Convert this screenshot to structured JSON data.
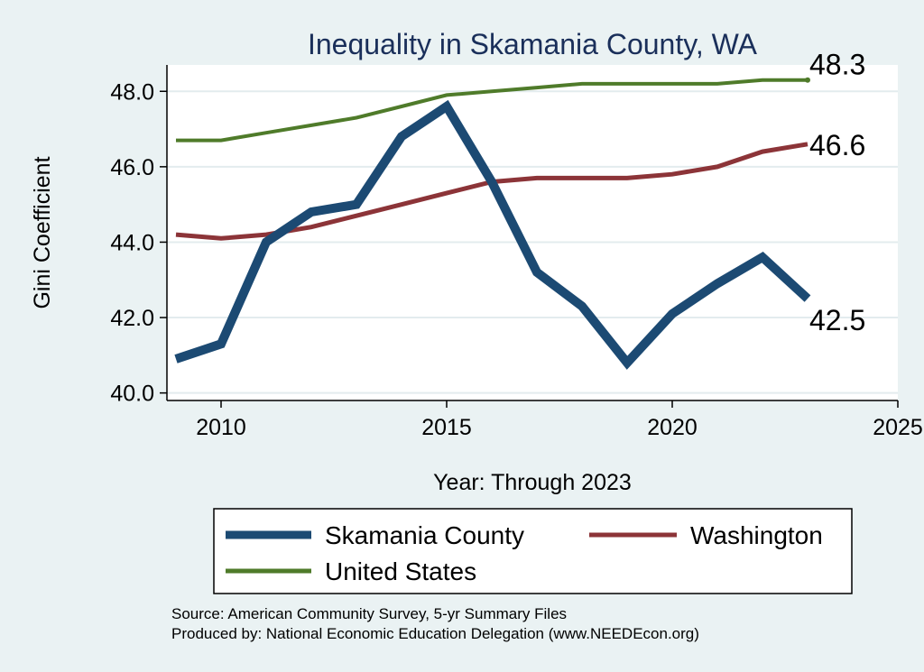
{
  "chart_data": {
    "type": "line",
    "title": "Inequality in Skamania County, WA",
    "xlabel": "Year: Through 2023",
    "ylabel": "Gini Coefficient",
    "xlim": [
      2008.8,
      2025
    ],
    "ylim": [
      39.8,
      48.7
    ],
    "x_ticks": [
      2010,
      2015,
      2020,
      2025
    ],
    "y_ticks": [
      40.0,
      42.0,
      44.0,
      46.0,
      48.0
    ],
    "x_tick_labels": [
      "2010",
      "2015",
      "2020",
      "2025"
    ],
    "y_tick_labels": [
      "40.0",
      "42.0",
      "44.0",
      "46.0",
      "48.0"
    ],
    "grid": true,
    "legend_position": "bottom",
    "x": [
      2009,
      2010,
      2011,
      2012,
      2013,
      2014,
      2015,
      2016,
      2017,
      2018,
      2019,
      2020,
      2021,
      2022,
      2023
    ],
    "series": [
      {
        "name": "Skamania County",
        "color": "#1c4a73",
        "values": [
          40.9,
          41.3,
          44.0,
          44.8,
          45.0,
          46.8,
          47.6,
          45.6,
          43.2,
          42.3,
          40.8,
          42.1,
          42.9,
          43.6,
          42.5
        ],
        "end_label": "42.5"
      },
      {
        "name": "Washington",
        "color": "#8c3438",
        "values": [
          44.2,
          44.1,
          44.2,
          44.4,
          44.7,
          45.0,
          45.3,
          45.6,
          45.7,
          45.7,
          45.7,
          45.8,
          46.0,
          46.4,
          46.6
        ],
        "end_label": "46.6"
      },
      {
        "name": "United States",
        "color": "#4f7b2a",
        "values": [
          46.7,
          46.7,
          46.9,
          47.1,
          47.3,
          47.6,
          47.9,
          48.0,
          48.1,
          48.2,
          48.2,
          48.2,
          48.2,
          48.3,
          48.3
        ],
        "end_label": "48.3"
      }
    ],
    "source": "Source: American Community Survey, 5-yr Summary Files",
    "producer": "Produced by: National Economic Education Delegation (www.NEEDEcon.org)"
  }
}
